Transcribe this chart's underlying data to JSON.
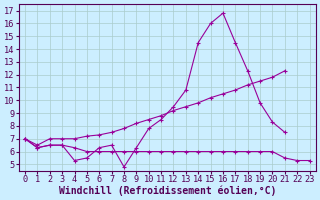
{
  "background_color": "#cceeff",
  "line_color": "#990099",
  "grid_color": "#aacccc",
  "xlabel": "Windchill (Refroidissement éolien,°C)",
  "xlabel_fontsize": 7.0,
  "tick_fontsize": 6.2,
  "ylim": [
    4.5,
    17.5
  ],
  "xlim": [
    -0.5,
    23.5
  ],
  "yticks": [
    5,
    6,
    7,
    8,
    9,
    10,
    11,
    12,
    13,
    14,
    15,
    16,
    17
  ],
  "xticks": [
    0,
    1,
    2,
    3,
    4,
    5,
    6,
    7,
    8,
    9,
    10,
    11,
    12,
    13,
    14,
    15,
    16,
    17,
    18,
    19,
    20,
    21,
    22,
    23
  ],
  "line1_x": [
    0,
    1,
    2,
    3,
    4,
    5,
    6,
    7,
    8,
    9,
    10,
    11,
    12,
    13,
    14,
    15,
    16,
    17,
    18,
    19,
    20,
    21
  ],
  "line1_y": [
    7.0,
    6.3,
    6.5,
    6.5,
    5.3,
    5.5,
    6.3,
    6.5,
    4.8,
    6.3,
    7.8,
    8.5,
    9.5,
    10.8,
    14.5,
    16.0,
    16.8,
    14.5,
    12.3,
    9.8,
    8.3,
    7.5
  ],
  "line2_x": [
    0,
    1,
    2,
    3,
    4,
    5,
    6,
    7,
    8,
    9,
    10,
    11,
    12,
    13,
    14,
    15,
    16,
    17,
    18,
    19,
    20,
    21
  ],
  "line2_y": [
    7.0,
    6.5,
    7.0,
    7.0,
    7.0,
    7.2,
    7.3,
    7.5,
    7.8,
    8.2,
    8.5,
    8.8,
    9.2,
    9.5,
    9.8,
    10.2,
    10.5,
    10.8,
    11.2,
    11.5,
    11.8,
    12.3
  ],
  "line3_x": [
    0,
    1,
    2,
    3,
    4,
    5,
    6,
    7,
    8,
    9,
    10,
    11,
    12,
    13,
    14,
    15,
    16,
    17,
    18,
    19,
    20,
    21,
    22,
    23
  ],
  "line3_y": [
    7.0,
    6.3,
    6.5,
    6.5,
    6.3,
    6.0,
    6.0,
    6.0,
    6.0,
    6.0,
    6.0,
    6.0,
    6.0,
    6.0,
    6.0,
    6.0,
    6.0,
    6.0,
    6.0,
    6.0,
    6.0,
    5.5,
    5.3,
    5.3
  ]
}
